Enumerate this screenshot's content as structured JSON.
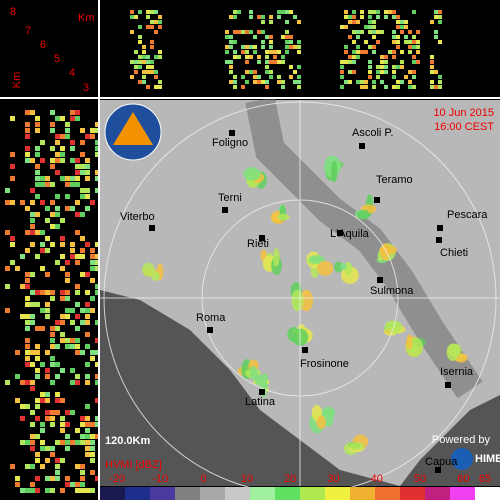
{
  "profile": {
    "km_top": "Km",
    "km_side": "Km",
    "heights": [
      8,
      7,
      6,
      5,
      4,
      3
    ]
  },
  "header": {
    "date": "10 Jun 2015",
    "time": "16:00 CEST"
  },
  "cities": [
    "Foligno",
    "Ascoli P.",
    "Teramo",
    "Terni",
    "Pescara",
    "Viterbo",
    "L'Aquila",
    "Rieti",
    "Chieti",
    "Sulmona",
    "Roma",
    "Frosinone",
    "Isernia",
    "Latina",
    "Capua"
  ],
  "range": "120.0Km",
  "legend": {
    "title": "HVMI [dBZ]",
    "ticks": [
      -20,
      -10,
      0,
      10,
      20,
      30,
      40,
      50,
      60,
      65
    ]
  },
  "credit": {
    "text": "Powered by",
    "brand": "HIMET"
  }
}
